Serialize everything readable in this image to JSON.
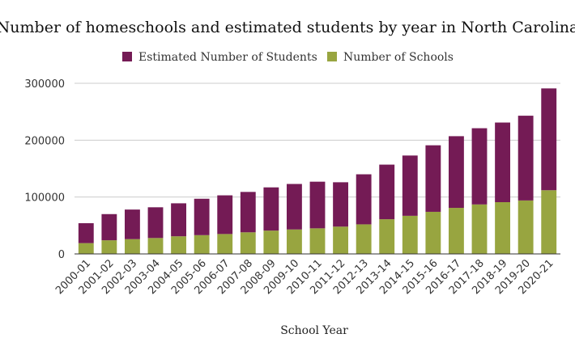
{
  "chart_data": {
    "type": "bar",
    "stacked": true,
    "title": "Number of homeschools and estimated students by year in North Carolina",
    "xlabel": "School Year",
    "ylabel": "",
    "ylim": [
      0,
      300000
    ],
    "yticks": [
      0,
      100000,
      200000,
      300000
    ],
    "ytick_labels": [
      "0",
      "100000",
      "200000",
      "300000"
    ],
    "grid": true,
    "legend_position": "top-center",
    "categories": [
      "2000-01",
      "2001-02",
      "2002-03",
      "2003-04",
      "2004-05",
      "2005-06",
      "2006-07",
      "2007-08",
      "2008-09",
      "2009-10",
      "2010-11",
      "2011-12",
      "2012-13",
      "2013-14",
      "2014-15",
      "2015-16",
      "2016-17",
      "2017-18",
      "2018-19",
      "2019-20",
      "2020-21"
    ],
    "series": [
      {
        "name": "Estimated Number of Students",
        "color": "#741b55",
        "values": [
          35000,
          46000,
          52000,
          54000,
          58000,
          64000,
          68000,
          71000,
          76000,
          80000,
          82000,
          78000,
          88000,
          96000,
          106000,
          117000,
          126000,
          134000,
          140000,
          149000,
          179000
        ]
      },
      {
        "name": "Number of Schools",
        "color": "#98a540",
        "values": [
          19000,
          24000,
          26000,
          28000,
          31000,
          33000,
          35000,
          38000,
          41000,
          43000,
          45000,
          48000,
          52000,
          61000,
          67000,
          74000,
          81000,
          87000,
          91000,
          94000,
          112000
        ]
      }
    ]
  }
}
